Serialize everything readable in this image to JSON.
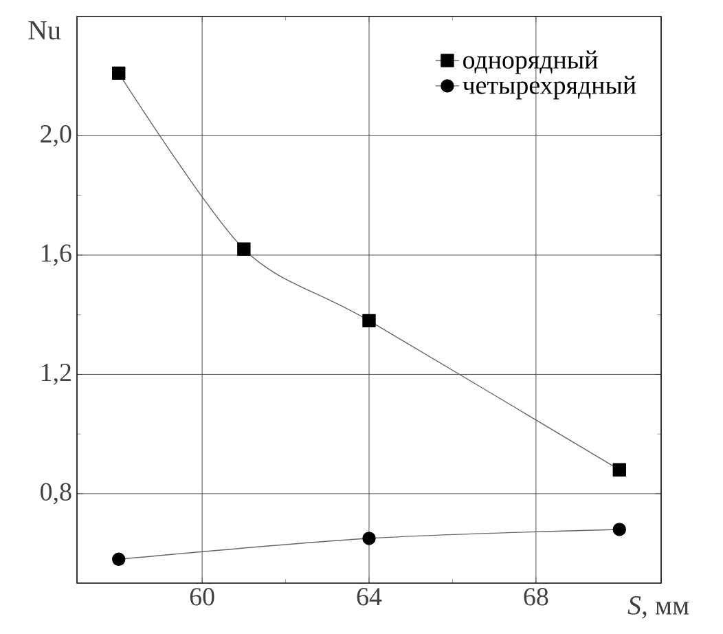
{
  "chart_data": {
    "type": "line",
    "xlabel": "*S*, мм",
    "ylabel": "Nu",
    "x": [
      58,
      61,
      64,
      70
    ],
    "series": [
      {
        "name": "однорядный",
        "color": "#000000",
        "marker": "square",
        "values": [
          2.21,
          1.62,
          1.38,
          0.88
        ]
      },
      {
        "name": "четырехрядный",
        "color": "#000000",
        "marker": "circle",
        "x": [
          58,
          64,
          70
        ],
        "values": [
          0.58,
          0.65,
          0.68
        ]
      }
    ],
    "xlim": [
      57,
      71
    ],
    "xticks": [
      60,
      64,
      68
    ],
    "ylim": [
      0.5,
      2.4
    ],
    "yticks": [
      {
        "value": 0.8,
        "label": "0,8"
      },
      {
        "value": 1.2,
        "label": "1,2"
      },
      {
        "value": 1.6,
        "label": "1,6"
      },
      {
        "value": 2.0,
        "label": "2,0"
      }
    ],
    "grid": true,
    "legend": "top right",
    "line_style": "solid"
  }
}
